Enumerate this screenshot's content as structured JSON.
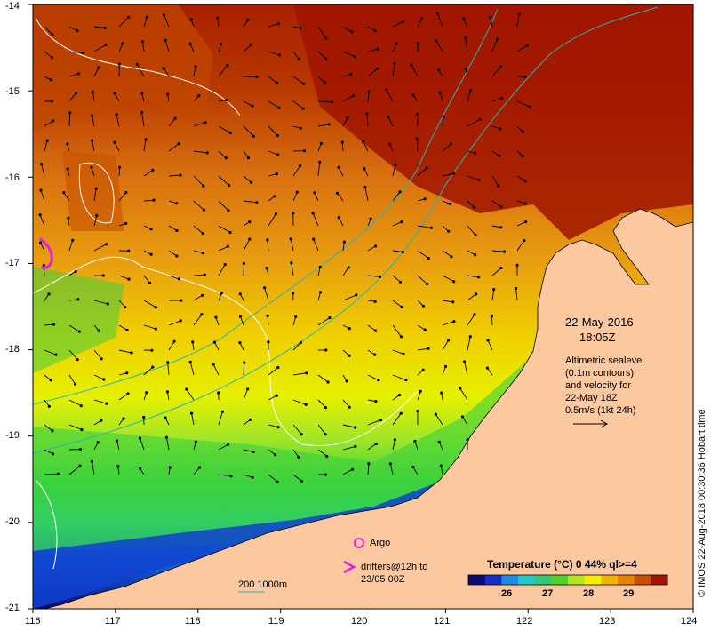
{
  "map": {
    "date": "22-May-2016",
    "time": "18:05Z",
    "annotation_lines": [
      "Altimetric sealevel",
      "(0.1m contours)",
      "and velocity for",
      "22-May 18Z",
      "0.5m/s (1kt 24h)"
    ],
    "legend": {
      "argo": "Argo",
      "drifters_line1": "drifters@12h to",
      "drifters_line2": "23/05 00Z",
      "depth_label": "200  1000m"
    },
    "colorbar": {
      "title": "Temperature (°C) 0 44% ql>=4",
      "ticks": [
        "26",
        "27",
        "28",
        "29"
      ],
      "colors": [
        "#0a0a78",
        "#1030c8",
        "#1a8ce6",
        "#22c8c8",
        "#30c878",
        "#50d22a",
        "#b4e61e",
        "#f0f000",
        "#f0b400",
        "#e68200",
        "#c85000",
        "#a01400"
      ]
    },
    "x_ticks": [
      "116",
      "117",
      "118",
      "119",
      "120",
      "121",
      "122",
      "123",
      "124"
    ],
    "y_ticks": [
      "-14",
      "-15",
      "-16",
      "-17",
      "-18",
      "-19",
      "-20",
      "-21"
    ],
    "credit": "© IMOS 22-Aug-2018 00:30:36 Hobart time",
    "colors": {
      "land": "#fcc8a0",
      "sea_warm": "#a82800",
      "sea_mid": "#e08c10",
      "sea_cool": "#f0f000",
      "sea_green": "#3cd23c",
      "coast_blue": "#1040d0",
      "current": "#28b4b4",
      "contour": "#ffffff",
      "argo": "#e020e0"
    }
  }
}
